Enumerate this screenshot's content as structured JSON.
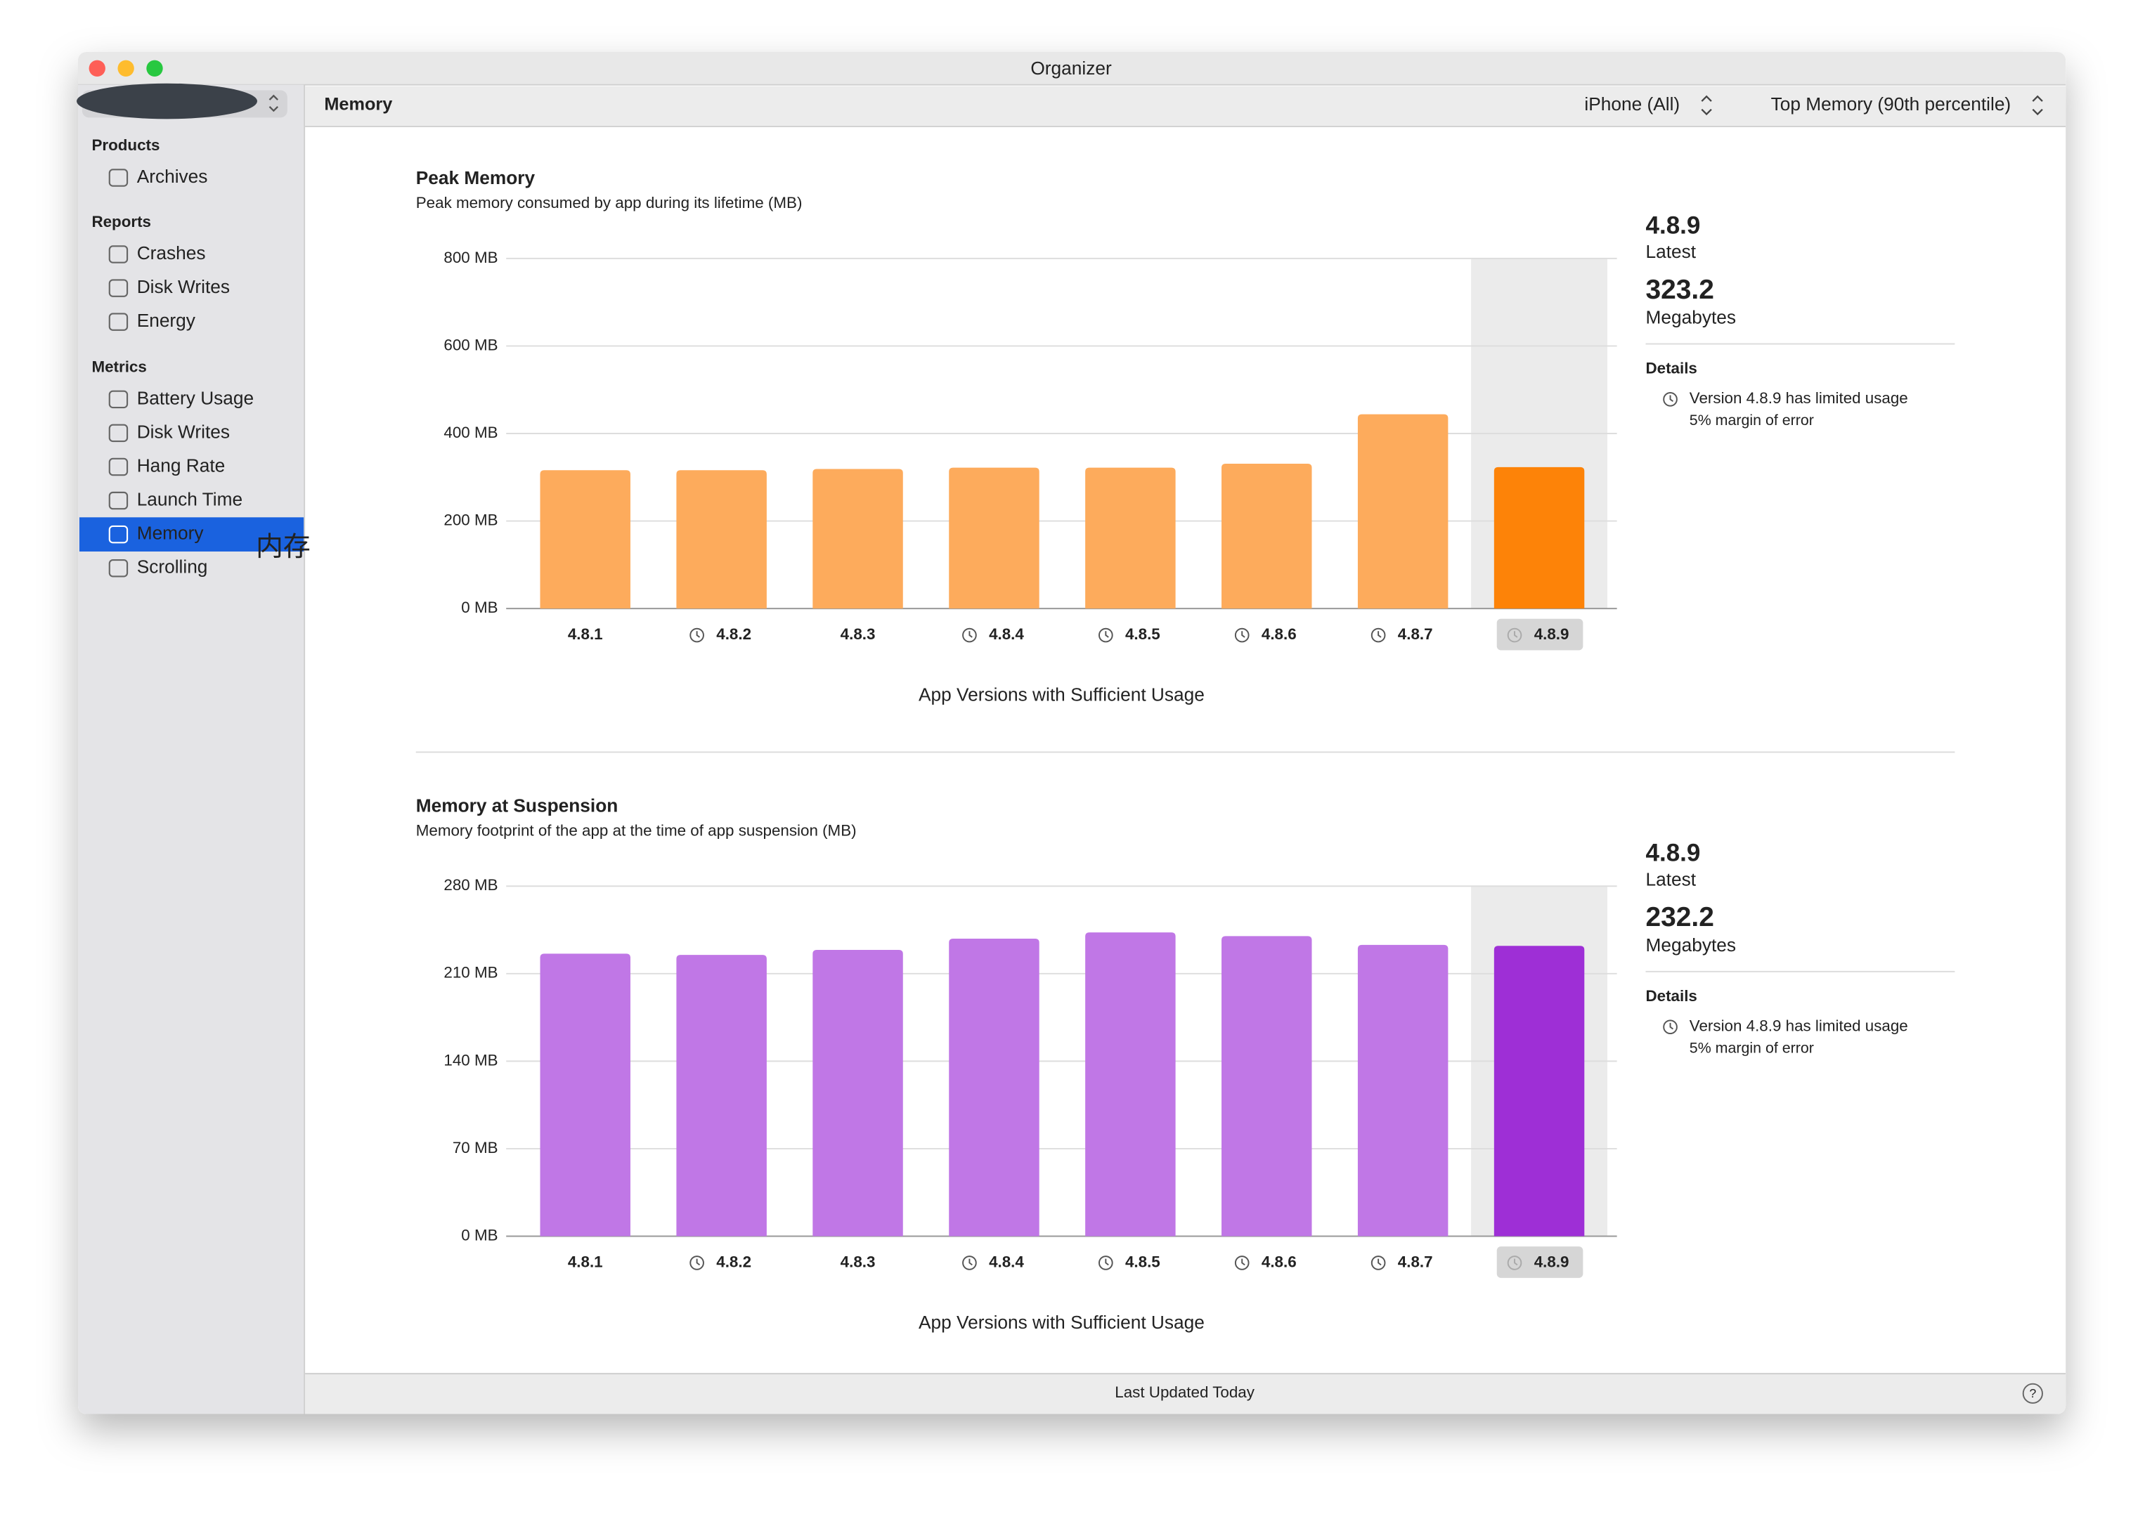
{
  "window": {
    "title": "Organizer"
  },
  "toolbar": {
    "section": "Memory",
    "device": "iPhone (All)",
    "metric": "Top Memory (90th percentile)"
  },
  "sidebar": {
    "sections": [
      {
        "title": "Products",
        "items": [
          "Archives"
        ]
      },
      {
        "title": "Reports",
        "items": [
          "Crashes",
          "Disk Writes",
          "Energy"
        ]
      },
      {
        "title": "Metrics",
        "items": [
          "Battery Usage",
          "Disk Writes",
          "Hang Rate",
          "Launch Time",
          "Memory",
          "Scrolling"
        ]
      }
    ],
    "annotation": "内存"
  },
  "footer": {
    "status": "Last Updated Today"
  },
  "chart_data": [
    {
      "type": "bar",
      "title": "Peak Memory",
      "subtitle": "Peak memory consumed by app during its lifetime (MB)",
      "x_label": "App Versions with Sufficient Usage",
      "categories": [
        "4.8.1",
        "4.8.2",
        "4.8.3",
        "4.8.4",
        "4.8.5",
        "4.8.6",
        "4.8.7",
        "4.8.9"
      ],
      "limited_usage": [
        false,
        true,
        false,
        true,
        true,
        true,
        true,
        true
      ],
      "values": [
        316,
        316,
        319,
        322,
        322,
        331,
        444,
        323.2
      ],
      "colors": [
        "#fdab5c",
        "#fdab5c",
        "#fdab5c",
        "#fdab5c",
        "#fdab5c",
        "#fdab5c",
        "#fdab5c",
        "#fd8308"
      ],
      "selected": 7,
      "ylim": [
        0,
        800
      ],
      "yticks": [
        {
          "value": 0,
          "label": "0 MB"
        },
        {
          "value": 200,
          "label": "200 MB"
        },
        {
          "value": 400,
          "label": "400 MB"
        },
        {
          "value": 600,
          "label": "600 MB"
        },
        {
          "value": 800,
          "label": "800 MB"
        }
      ],
      "grid": true,
      "summary": {
        "caption": "Latest",
        "unit": "Megabytes",
        "details_title": "Details",
        "details": "Version 4.8.9 has limited usage",
        "note": "5% margin of error"
      }
    },
    {
      "type": "bar",
      "title": "Memory at Suspension",
      "subtitle": "Memory footprint of the app at the time of app suspension (MB)",
      "x_label": "App Versions with Sufficient Usage",
      "categories": [
        "4.8.1",
        "4.8.2",
        "4.8.3",
        "4.8.4",
        "4.8.5",
        "4.8.6",
        "4.8.7",
        "4.8.9"
      ],
      "limited_usage": [
        false,
        true,
        false,
        true,
        true,
        true,
        true,
        true
      ],
      "values": [
        226,
        225,
        229,
        238,
        243,
        240,
        233,
        232.2
      ],
      "colors": [
        "#c077e6",
        "#c077e6",
        "#c077e6",
        "#c077e6",
        "#c077e6",
        "#c077e6",
        "#c077e6",
        "#9e2fd6"
      ],
      "selected": 7,
      "ylim": [
        0,
        280
      ],
      "yticks": [
        {
          "value": 0,
          "label": "0 MB"
        },
        {
          "value": 70,
          "label": "70 MB"
        },
        {
          "value": 140,
          "label": "140 MB"
        },
        {
          "value": 210,
          "label": "210 MB"
        },
        {
          "value": 280,
          "label": "280 MB"
        }
      ],
      "grid": true,
      "summary": {
        "caption": "Latest",
        "unit": "Megabytes",
        "details_title": "Details",
        "details": "Version 4.8.9 has limited usage",
        "note": "5% margin of error"
      }
    }
  ]
}
